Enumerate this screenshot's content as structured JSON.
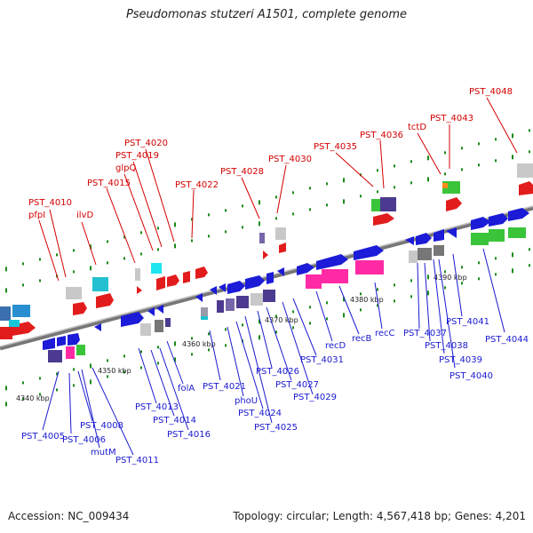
{
  "title": "Pseudomonas stutzeri A1501, complete genome",
  "footer": {
    "accession": "Accession: NC_009434",
    "topology": "Topology: circular; Length: 4,567,418 bp; Genes: 4,201"
  },
  "colors": {
    "forward_label": "#d40000",
    "reverse_label": "#1a1ad0",
    "backbone": "#888888",
    "tick": "#1a8a1a"
  },
  "axis_ticks": [
    "4340 kbp",
    "4350 kbp",
    "4360 kbp",
    "4370 kbp",
    "4380 kbp",
    "4390 kbp"
  ],
  "forward_labels": [
    "PST_4005",
    "PST_4006",
    "PST_4008",
    "mutM",
    "PST_4011",
    "PST_4013",
    "PST_4014",
    "PST_4016",
    "folA",
    "PST_4021",
    "phoU",
    "PST_4024",
    "PST_4025",
    "PST_4026",
    "PST_4027",
    "PST_4029",
    "PST_4031",
    "recD",
    "recB",
    "recC",
    "PST_4037",
    "PST_4038",
    "PST_4039",
    "PST_4040",
    "PST_4041",
    "PST_4044"
  ],
  "top_labels": [
    "PST_4010",
    "pfpI",
    "ilvD",
    "PST_4015",
    "glpQ",
    "PST_4019",
    "PST_4020",
    "PST_4022",
    "PST_4028",
    "PST_4030",
    "PST_4035",
    "PST_4036",
    "tctD",
    "PST_4043",
    "PST_4048"
  ]
}
